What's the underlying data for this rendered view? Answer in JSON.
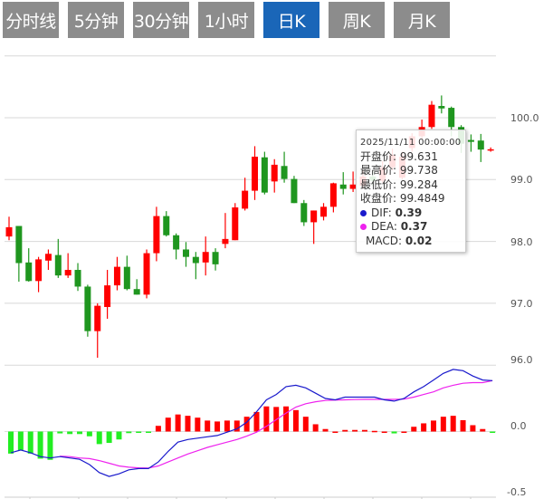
{
  "tabs": [
    {
      "label": "分时线",
      "active": false
    },
    {
      "label": "5分钟",
      "active": false
    },
    {
      "label": "30分钟",
      "active": false
    },
    {
      "label": "1小时",
      "active": false
    },
    {
      "label": "日K",
      "active": true
    },
    {
      "label": "周K",
      "active": false
    },
    {
      "label": "月K",
      "active": false
    }
  ],
  "colors": {
    "up": "#ff0000",
    "down": "#1f961f",
    "macd_up": "#ff0000",
    "macd_down": "#22ee22",
    "dif": "#1a1acc",
    "dea": "#ee22ee",
    "active_tab": "#1a66b8",
    "tab": "#8c8c8c"
  },
  "tooltip": {
    "date": "2025/11/11 00:00:00",
    "open_label": "开盘价: ",
    "open": "99.631",
    "high_label": "最高价: ",
    "high": "99.738",
    "low_label": "最低价: ",
    "low": "99.284",
    "close_label": "收盘价: ",
    "close": "99.4849",
    "dif_label": "DIF: ",
    "dif": "0.39",
    "dea_label": "DEA: ",
    "dea": "0.37",
    "macd_label": "MACD: ",
    "macd": "0.02"
  },
  "chart_data": [
    {
      "type": "candlestick",
      "ylim": [
        96.0,
        101.0
      ],
      "yticks": [
        "100.0",
        "99.0",
        "98.0",
        "97.0",
        "96.0"
      ],
      "grid": true,
      "ohlc": [
        [
          98.08,
          98.4,
          98.02,
          98.23
        ],
        [
          98.25,
          98.25,
          97.35,
          97.65
        ],
        [
          97.66,
          97.89,
          97.35,
          97.36
        ],
        [
          97.36,
          97.75,
          97.18,
          97.71
        ],
        [
          97.69,
          97.87,
          97.54,
          97.8
        ],
        [
          97.78,
          98.04,
          97.41,
          97.45
        ],
        [
          97.45,
          97.81,
          97.41,
          97.54
        ],
        [
          97.54,
          97.65,
          97.2,
          97.27
        ],
        [
          97.27,
          97.3,
          96.46,
          96.55
        ],
        [
          96.55,
          97.0,
          96.12,
          96.96
        ],
        [
          96.94,
          97.54,
          96.75,
          97.29
        ],
        [
          97.29,
          97.75,
          97.21,
          97.59
        ],
        [
          97.59,
          97.77,
          97.21,
          97.23
        ],
        [
          97.23,
          97.39,
          97.14,
          97.14
        ],
        [
          97.14,
          97.87,
          97.08,
          97.81
        ],
        [
          97.81,
          98.56,
          97.68,
          98.41
        ],
        [
          98.41,
          98.49,
          98.08,
          98.1
        ],
        [
          98.1,
          98.13,
          97.71,
          97.87
        ],
        [
          97.87,
          97.99,
          97.59,
          97.75
        ],
        [
          97.75,
          97.83,
          97.39,
          97.65
        ],
        [
          97.66,
          98.08,
          97.45,
          97.83
        ],
        [
          97.83,
          97.89,
          97.53,
          97.63
        ],
        [
          97.96,
          98.46,
          97.89,
          98.04
        ],
        [
          98.02,
          98.62,
          98.02,
          98.55
        ],
        [
          98.53,
          99.03,
          98.5,
          98.82
        ],
        [
          98.82,
          99.54,
          98.67,
          99.37
        ],
        [
          99.36,
          99.45,
          98.76,
          98.79
        ],
        [
          98.97,
          99.33,
          98.79,
          99.24
        ],
        [
          99.22,
          99.45,
          98.95,
          99.01
        ],
        [
          99.01,
          99.06,
          98.62,
          98.62
        ],
        [
          98.62,
          98.67,
          98.25,
          98.31
        ],
        [
          98.31,
          98.5,
          97.96,
          98.5
        ],
        [
          98.4,
          98.62,
          98.34,
          98.56
        ],
        [
          98.56,
          98.95,
          98.47,
          98.94
        ],
        [
          98.92,
          99.12,
          98.76,
          98.85
        ],
        [
          98.85,
          99.13,
          98.8,
          98.92
        ],
        [
          98.9,
          99.15,
          98.85,
          99.05
        ],
        [
          99.05,
          99.15,
          98.9,
          98.98
        ],
        [
          98.98,
          99.3,
          98.95,
          99.2
        ],
        [
          99.2,
          99.5,
          99.15,
          99.4
        ],
        [
          99.03,
          99.45,
          99.0,
          99.37
        ],
        [
          99.51,
          99.75,
          99.45,
          99.7
        ],
        [
          99.7,
          99.97,
          99.65,
          99.85
        ],
        [
          99.85,
          100.27,
          99.82,
          100.21
        ],
        [
          100.19,
          100.36,
          100.07,
          100.15
        ],
        [
          100.16,
          100.18,
          99.7,
          99.85
        ],
        [
          99.85,
          99.88,
          99.43,
          99.58
        ],
        [
          99.64,
          99.73,
          99.45,
          99.61
        ],
        [
          99.631,
          99.738,
          99.284,
          99.4849
        ],
        [
          99.47,
          99.52,
          99.45,
          99.49
        ]
      ]
    },
    {
      "type": "macd",
      "ylim": [
        -0.5,
        0.5
      ],
      "yticks": [
        "0.0",
        "-0.5"
      ],
      "macd": [
        -0.167,
        -0.143,
        -0.167,
        -0.205,
        -0.214,
        -0.014,
        -0.019,
        -0.019,
        -0.036,
        -0.095,
        -0.086,
        -0.06,
        -0.012,
        -0.005,
        -0.005,
        0.043,
        0.105,
        0.129,
        0.119,
        0.105,
        0.083,
        0.076,
        0.083,
        0.083,
        0.112,
        0.148,
        0.19,
        0.186,
        0.19,
        0.162,
        0.112,
        0.055,
        0.019,
        0,
        0.012,
        0.012,
        0.012,
        0.005,
        0,
        -0.014,
        0,
        0.036,
        0.062,
        0.083,
        0.112,
        0.119,
        0.086,
        0.048,
        0.019,
        -0.005
      ],
      "dif": [
        -0.16,
        -0.14,
        -0.16,
        -0.19,
        -0.2,
        -0.19,
        -0.2,
        -0.21,
        -0.25,
        -0.31,
        -0.34,
        -0.32,
        -0.29,
        -0.28,
        -0.28,
        -0.23,
        -0.15,
        -0.08,
        -0.06,
        -0.05,
        -0.04,
        -0.03,
        -0.005,
        0.02,
        0.07,
        0.15,
        0.24,
        0.28,
        0.34,
        0.35,
        0.33,
        0.29,
        0.25,
        0.24,
        0.26,
        0.26,
        0.26,
        0.26,
        0.24,
        0.23,
        0.25,
        0.3,
        0.34,
        0.39,
        0.44,
        0.47,
        0.46,
        0.42,
        0.39,
        0.385
      ],
      "dea": [
        null,
        null,
        null,
        null,
        null,
        -0.186,
        -0.19,
        -0.2,
        -0.205,
        -0.22,
        -0.24,
        -0.26,
        -0.27,
        -0.275,
        -0.276,
        -0.26,
        -0.23,
        -0.2,
        -0.17,
        -0.145,
        -0.12,
        -0.1,
        -0.08,
        -0.06,
        -0.035,
        -0.005,
        0.04,
        0.09,
        0.14,
        0.185,
        0.21,
        0.225,
        0.235,
        0.238,
        0.24,
        0.242,
        0.243,
        0.243,
        0.243,
        0.243,
        0.245,
        0.26,
        0.28,
        0.3,
        0.33,
        0.35,
        0.365,
        0.37,
        0.37,
        0.385
      ]
    }
  ]
}
